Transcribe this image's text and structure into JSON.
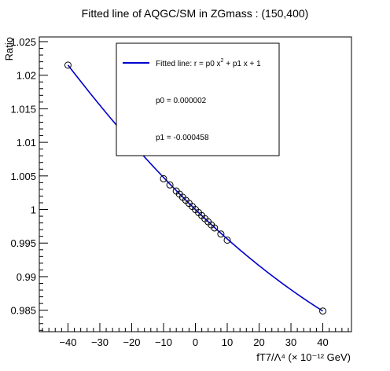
{
  "chart_data": {
    "type": "scatter",
    "title": "Fitted line of AQGC/SM in ZGmass : (150,400)",
    "xlabel": "fT7/Λ⁴ (× 10⁻¹² GeV)",
    "ylabel": "Ratio",
    "xlim": [
      -49,
      49
    ],
    "ylim": [
      0.9818,
      1.0257
    ],
    "x_ticks": [
      -40,
      -30,
      -20,
      -10,
      0,
      10,
      20,
      30,
      40
    ],
    "x_tick_labels": [
      "−40",
      "−30",
      "−20",
      "−10",
      "0",
      "10",
      "20",
      "30",
      "40"
    ],
    "y_ticks": [
      0.985,
      0.99,
      0.995,
      1.0,
      1.005,
      1.01,
      1.015,
      1.02,
      1.025
    ],
    "y_tick_labels": [
      "0.985",
      "0.99",
      "0.995",
      "1",
      "1.005",
      "1.01",
      "1.015",
      "1.02",
      "1.025"
    ],
    "grid": false,
    "points": {
      "x": [
        -40,
        -10,
        -8,
        -6,
        -5,
        -4,
        -3,
        -2,
        -1,
        0,
        1,
        2,
        3,
        4,
        5,
        6,
        8,
        10,
        40
      ],
      "y": [
        1.0215,
        1.00458,
        1.00366,
        1.00275,
        1.00229,
        1.00183,
        1.00137,
        1.00092,
        1.00046,
        1.0,
        0.99954,
        0.99909,
        0.99863,
        0.99817,
        0.99771,
        0.99726,
        0.99635,
        0.99544,
        0.98488
      ]
    },
    "fit": {
      "p0": 2e-06,
      "p1": -0.000458,
      "color": "#0000cc"
    },
    "legend": {
      "placement": "top-center",
      "entries": [
        {
          "label": "Fitted line: r =  p0 x",
          "sup1": "2",
          "label_rest": " + p1 x + 1"
        },
        {
          "label": "p0 = 0.000002"
        },
        {
          "label": "p1 = -0.000458"
        }
      ]
    }
  }
}
